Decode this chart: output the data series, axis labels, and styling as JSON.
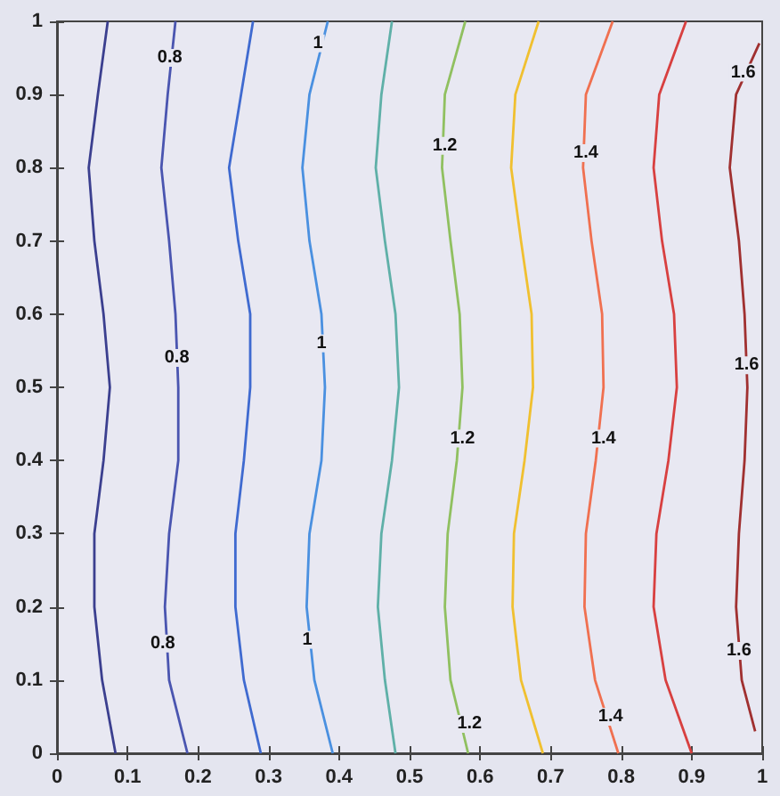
{
  "chart_data": {
    "type": "line",
    "xlim": [
      0,
      1
    ],
    "ylim": [
      0,
      1
    ],
    "xticks": [
      0,
      0.1,
      0.2,
      0.3,
      0.4,
      0.5,
      0.6,
      0.7,
      0.8,
      0.9,
      1
    ],
    "yticks": [
      0,
      0.1,
      0.2,
      0.3,
      0.4,
      0.5,
      0.6,
      0.7,
      0.8,
      0.9,
      1
    ],
    "series": [
      {
        "color": "#3b3f8f",
        "x": [
          0.083,
          0.064,
          0.053,
          0.053,
          0.066,
          0.075,
          0.066,
          0.053,
          0.045,
          0.058,
          0.072
        ],
        "values": [
          0,
          0.1,
          0.2,
          0.3,
          0.4,
          0.5,
          0.6,
          0.7,
          0.8,
          0.9,
          1
        ]
      },
      {
        "color": "#4a55b0",
        "x": [
          0.185,
          0.159,
          0.153,
          0.159,
          0.172,
          0.172,
          0.168,
          0.159,
          0.148,
          0.157,
          0.168
        ],
        "values": [
          0,
          0.1,
          0.2,
          0.3,
          0.4,
          0.5,
          0.6,
          0.7,
          0.8,
          0.9,
          1
        ]
      },
      {
        "color": "#3f6ad0",
        "x": [
          0.289,
          0.265,
          0.253,
          0.253,
          0.265,
          0.274,
          0.274,
          0.257,
          0.244,
          0.261,
          0.278
        ],
        "values": [
          0,
          0.1,
          0.2,
          0.3,
          0.4,
          0.5,
          0.6,
          0.7,
          0.8,
          0.9,
          1
        ]
      },
      {
        "color": "#4a90e0",
        "x": [
          0.391,
          0.365,
          0.354,
          0.358,
          0.375,
          0.38,
          0.375,
          0.358,
          0.348,
          0.358,
          0.384
        ],
        "values": [
          0,
          0.1,
          0.2,
          0.3,
          0.4,
          0.5,
          0.6,
          0.7,
          0.8,
          0.9,
          1
        ]
      },
      {
        "color": "#5fb0a8",
        "x": [
          0.48,
          0.465,
          0.455,
          0.46,
          0.475,
          0.485,
          0.48,
          0.465,
          0.452,
          0.46,
          0.475
        ],
        "values": [
          0,
          0.1,
          0.2,
          0.3,
          0.4,
          0.5,
          0.6,
          0.7,
          0.8,
          0.9,
          1
        ]
      },
      {
        "color": "#90c060",
        "x": [
          0.583,
          0.558,
          0.55,
          0.554,
          0.567,
          0.575,
          0.571,
          0.558,
          0.546,
          0.55,
          0.579
        ],
        "values": [
          0,
          0.1,
          0.2,
          0.3,
          0.4,
          0.5,
          0.6,
          0.7,
          0.8,
          0.9,
          1
        ]
      },
      {
        "color": "#f0c030",
        "x": [
          0.689,
          0.658,
          0.646,
          0.648,
          0.663,
          0.675,
          0.673,
          0.658,
          0.644,
          0.65,
          0.683
        ],
        "values": [
          0,
          0.1,
          0.2,
          0.3,
          0.4,
          0.5,
          0.6,
          0.7,
          0.8,
          0.9,
          1
        ]
      },
      {
        "color": "#f07050",
        "x": [
          0.796,
          0.763,
          0.748,
          0.75,
          0.764,
          0.775,
          0.773,
          0.758,
          0.746,
          0.75,
          0.788
        ],
        "values": [
          0,
          0.1,
          0.2,
          0.3,
          0.4,
          0.5,
          0.6,
          0.7,
          0.8,
          0.9,
          1
        ]
      },
      {
        "color": "#d84040",
        "x": [
          0.9,
          0.863,
          0.846,
          0.85,
          0.867,
          0.879,
          0.875,
          0.858,
          0.846,
          0.854,
          0.892
        ],
        "values": [
          0,
          0.1,
          0.2,
          0.3,
          0.4,
          0.5,
          0.6,
          0.7,
          0.8,
          0.9,
          1
        ]
      },
      {
        "color": "#a03030",
        "x": [
          0.99,
          0.971,
          0.963,
          0.967,
          0.975,
          0.979,
          0.975,
          0.967,
          0.954,
          0.963,
          0.996
        ],
        "values": [
          0.03,
          0.1,
          0.2,
          0.3,
          0.4,
          0.5,
          0.6,
          0.7,
          0.8,
          0.9,
          0.97
        ]
      }
    ],
    "annotations": [
      {
        "text": "0.8",
        "x": 0.16,
        "y": 0.95
      },
      {
        "text": "0.8",
        "x": 0.17,
        "y": 0.54
      },
      {
        "text": "0.8",
        "x": 0.15,
        "y": 0.15
      },
      {
        "text": "1",
        "x": 0.37,
        "y": 0.97
      },
      {
        "text": "1",
        "x": 0.375,
        "y": 0.56
      },
      {
        "text": "1",
        "x": 0.355,
        "y": 0.155
      },
      {
        "text": "1.2",
        "x": 0.55,
        "y": 0.83
      },
      {
        "text": "1.2",
        "x": 0.575,
        "y": 0.43
      },
      {
        "text": "1.2",
        "x": 0.585,
        "y": 0.04
      },
      {
        "text": "1.4",
        "x": 0.75,
        "y": 0.82
      },
      {
        "text": "1.4",
        "x": 0.775,
        "y": 0.43
      },
      {
        "text": "1.4",
        "x": 0.785,
        "y": 0.05
      },
      {
        "text": "1.6",
        "x": 0.973,
        "y": 0.93
      },
      {
        "text": "1.6",
        "x": 0.978,
        "y": 0.53
      },
      {
        "text": "1.6",
        "x": 0.967,
        "y": 0.14
      }
    ]
  }
}
